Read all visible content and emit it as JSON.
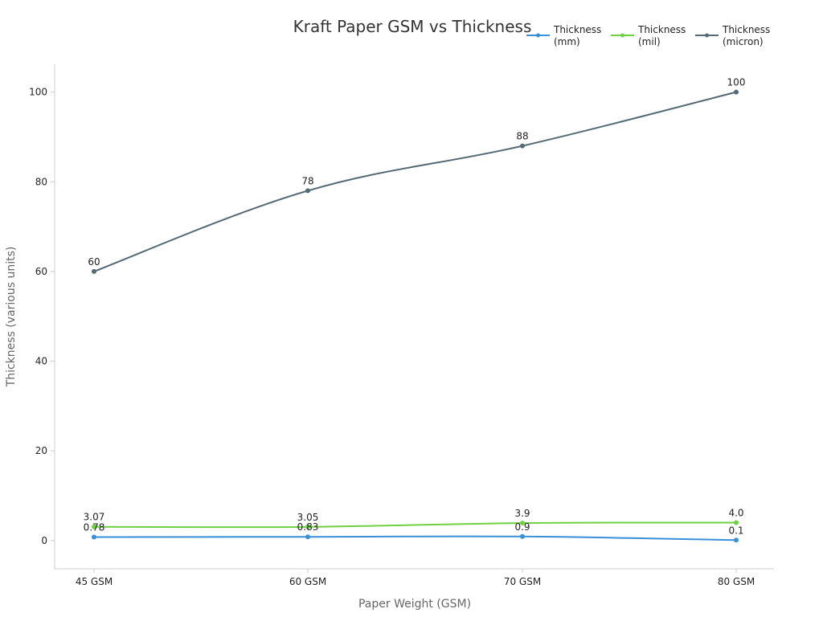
{
  "chart_data": {
    "type": "line",
    "title": "Kraft Paper GSM vs Thickness",
    "xlabel": "Paper Weight (GSM)",
    "ylabel": "Thickness (various units)",
    "categories": [
      "45 GSM",
      "60 GSM",
      "70 GSM",
      "80 GSM"
    ],
    "ylim": [
      -6.3,
      106.2
    ],
    "yticks": [
      0,
      20,
      40,
      60,
      80,
      100
    ],
    "grid": false,
    "legend": "top-right",
    "series": [
      {
        "name": "Thickness (mm)",
        "legend_lines": [
          "Thickness",
          "(mm)"
        ],
        "values": [
          0.78,
          0.83,
          0.9,
          0.1
        ],
        "labels": [
          "0.78",
          "0.83",
          "0.9",
          "0.1"
        ],
        "color": "#3a8fd9"
      },
      {
        "name": "Thickness (mil)",
        "legend_lines": [
          "Thickness",
          "(mil)"
        ],
        "values": [
          3.07,
          3.05,
          3.9,
          4.0
        ],
        "labels": [
          "3.07",
          "3.05",
          "3.9",
          "4.0"
        ],
        "color": "#6fd041"
      },
      {
        "name": "Thickness (micron)",
        "legend_lines": [
          "Thickness",
          "(micron)"
        ],
        "values": [
          60,
          78,
          88,
          100
        ],
        "labels": [
          "60",
          "78",
          "88",
          "100"
        ],
        "color": "#546a75"
      }
    ]
  }
}
